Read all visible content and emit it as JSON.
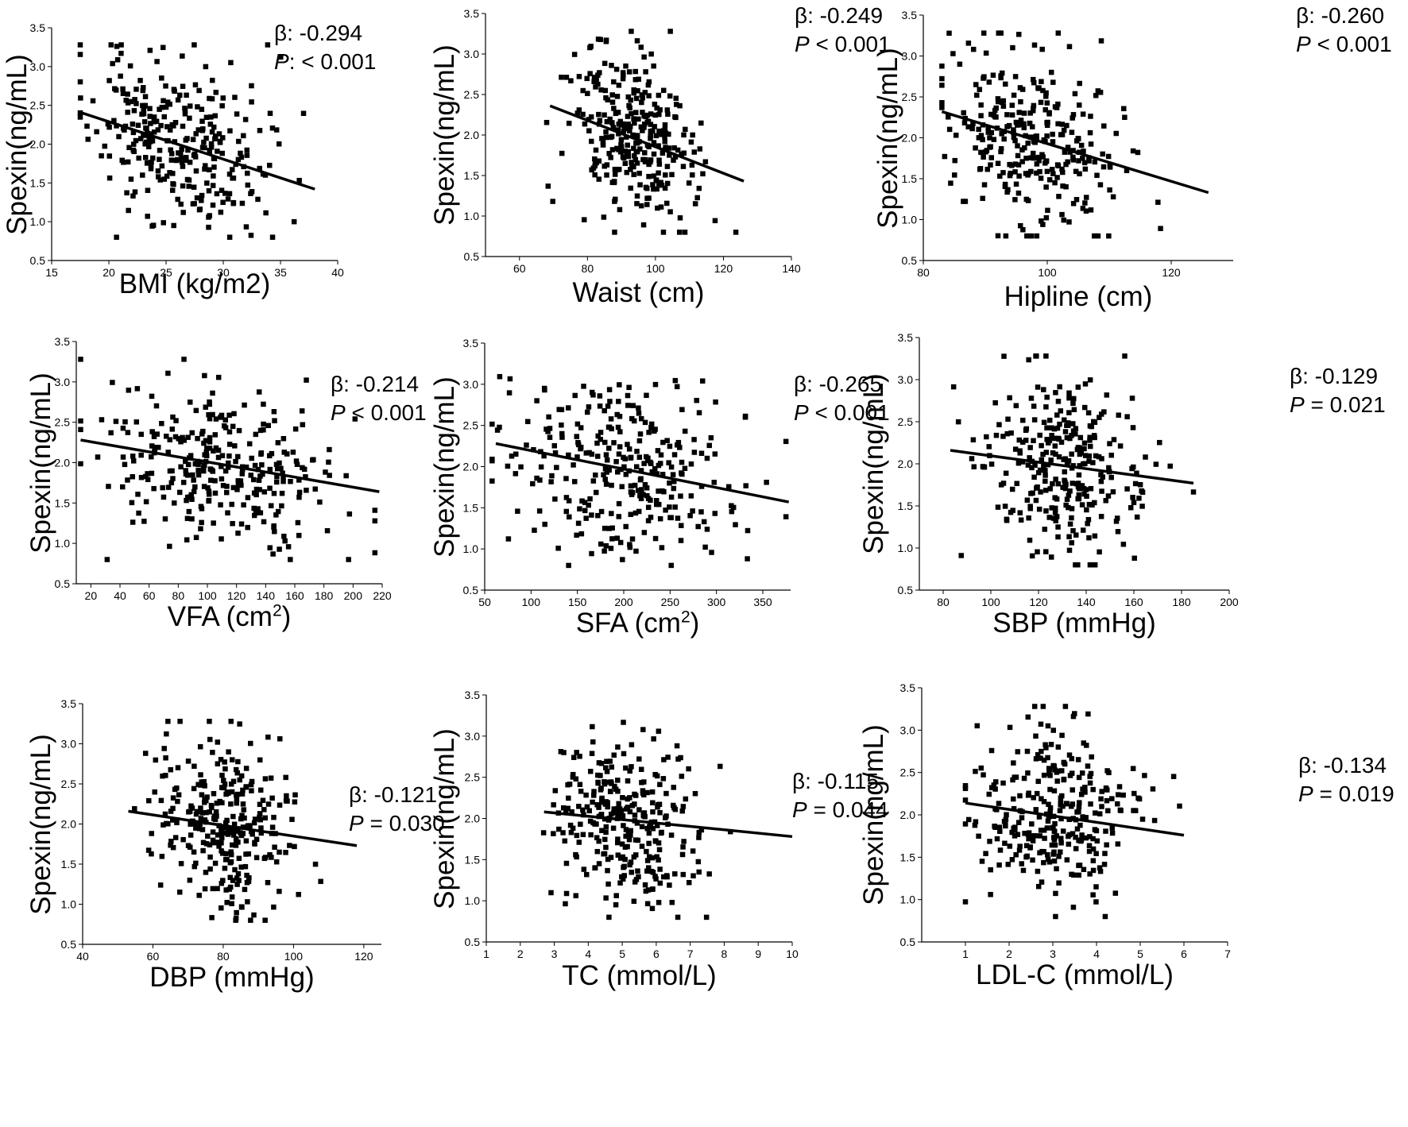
{
  "chart_data": [
    {
      "id": "bmi",
      "type": "scatter",
      "xlabel": "BMI (kg/m2)",
      "xlabel_sup": "",
      "xlabel_tail": "",
      "ylabel": "Spexin(ng/mL)",
      "beta_text": "β: -0.294",
      "p_prefix": "P",
      "p_suffix": ": < 0.001",
      "xlim": [
        15,
        40
      ],
      "ylim": [
        0.5,
        3.5
      ],
      "xticks": [
        15,
        20,
        25,
        30,
        35,
        40
      ],
      "yticks": [
        0.5,
        1.0,
        1.5,
        2.0,
        2.5,
        3.0,
        3.5
      ],
      "x_range": [
        17.5,
        38.0
      ],
      "x_center": 26,
      "x_spread": 3.8,
      "fit": {
        "x": [
          17.5,
          38.0
        ],
        "y": [
          2.41,
          1.42
        ]
      },
      "n_points": 300,
      "seed": 11
    },
    {
      "id": "waist",
      "type": "scatter",
      "xlabel": "Waist (cm)",
      "xlabel_sup": "",
      "xlabel_tail": "",
      "ylabel": "Spexin(ng/mL)",
      "beta_text": "β: -0.249",
      "p_prefix": "P",
      "p_suffix": " < 0.001",
      "xlim": [
        50,
        140
      ],
      "ylim": [
        0.5,
        3.5
      ],
      "xticks": [
        60,
        80,
        100,
        120,
        140
      ],
      "yticks": [
        0.5,
        1.0,
        1.5,
        2.0,
        2.5,
        3.0,
        3.5
      ],
      "x_range": [
        68,
        126
      ],
      "x_center": 93,
      "x_spread": 9,
      "fit": {
        "x": [
          69,
          126
        ],
        "y": [
          2.36,
          1.43
        ]
      },
      "n_points": 300,
      "seed": 23
    },
    {
      "id": "hipline",
      "type": "scatter",
      "xlabel": "Hipline (cm)",
      "xlabel_sup": "",
      "xlabel_tail": "",
      "ylabel": "Spexin(ng/mL)",
      "beta_text": "β: -0.260",
      "p_prefix": "P",
      "p_suffix": " < 0.001",
      "xlim": [
        80,
        130
      ],
      "ylim": [
        0.5,
        3.5
      ],
      "xticks": [
        80,
        100,
        120
      ],
      "yticks": [
        0.5,
        1.0,
        1.5,
        2.0,
        2.5,
        3.0,
        3.5
      ],
      "x_range": [
        83,
        126
      ],
      "x_center": 98,
      "x_spread": 7,
      "fit": {
        "x": [
          83,
          126
        ],
        "y": [
          2.32,
          1.33
        ]
      },
      "n_points": 300,
      "seed": 37
    },
    {
      "id": "vfa",
      "type": "scatter",
      "xlabel": "VFA (cm",
      "xlabel_sup": "2",
      "xlabel_tail": ")",
      "ylabel": "Spexin(ng/mL)",
      "beta_text": "β: -0.214",
      "p_prefix": "P",
      "p_suffix": " < 0.001",
      "xlim": [
        10,
        220
      ],
      "ylim": [
        0.5,
        3.5
      ],
      "xticks": [
        20,
        40,
        60,
        80,
        100,
        120,
        140,
        160,
        180,
        200,
        220
      ],
      "yticks": [
        0.5,
        1.0,
        1.5,
        2.0,
        2.5,
        3.0,
        3.5
      ],
      "x_range": [
        13,
        215
      ],
      "x_center": 108,
      "x_spread": 38,
      "fit": {
        "x": [
          13,
          218
        ],
        "y": [
          2.28,
          1.64
        ]
      },
      "n_points": 300,
      "seed": 41
    },
    {
      "id": "sfa",
      "type": "scatter",
      "xlabel": "SFA (cm",
      "xlabel_sup": "2",
      "xlabel_tail": ")",
      "ylabel": "Spexin(ng/mL)",
      "beta_text": "β: -0.265",
      "p_prefix": "P",
      "p_suffix": " < 0.001",
      "xlim": [
        50,
        380
      ],
      "ylim": [
        0.5,
        3.5
      ],
      "xticks": [
        50,
        100,
        150,
        200,
        250,
        300,
        350
      ],
      "yticks": [
        0.5,
        1.0,
        1.5,
        2.0,
        2.5,
        3.0,
        3.5
      ],
      "x_range": [
        58,
        375
      ],
      "x_center": 195,
      "x_spread": 60,
      "fit": {
        "x": [
          62,
          378
        ],
        "y": [
          2.28,
          1.57
        ]
      },
      "n_points": 300,
      "seed": 53
    },
    {
      "id": "sbp",
      "type": "scatter",
      "xlabel": "SBP (mmHg)",
      "xlabel_sup": "",
      "xlabel_tail": "",
      "ylabel": "Spexin(ng/mL)",
      "beta_text": "β: -0.129",
      "p_prefix": "P",
      "p_suffix": " = 0.021",
      "xlim": [
        70,
        200
      ],
      "ylim": [
        0.5,
        3.5
      ],
      "xticks": [
        80,
        100,
        120,
        140,
        160,
        180,
        200
      ],
      "yticks": [
        0.5,
        1.0,
        1.5,
        2.0,
        2.5,
        3.0,
        3.5
      ],
      "x_range": [
        83,
        185
      ],
      "x_center": 130,
      "x_spread": 17,
      "fit": {
        "x": [
          83,
          185
        ],
        "y": [
          2.16,
          1.77
        ]
      },
      "n_points": 300,
      "seed": 67
    },
    {
      "id": "dbp",
      "type": "scatter",
      "xlabel": "DBP (mmHg)",
      "xlabel_sup": "",
      "xlabel_tail": "",
      "ylabel": "Spexin(ng/mL)",
      "beta_text": "β: -0.121",
      "p_prefix": "P",
      "p_suffix": " = 0.030",
      "xlim": [
        40,
        125
      ],
      "ylim": [
        0.5,
        3.5
      ],
      "xticks": [
        40,
        60,
        80,
        100,
        120
      ],
      "yticks": [
        0.5,
        1.0,
        1.5,
        2.0,
        2.5,
        3.0,
        3.5
      ],
      "x_range": [
        53,
        118
      ],
      "x_center": 80,
      "x_spread": 10,
      "fit": {
        "x": [
          53,
          118
        ],
        "y": [
          2.16,
          1.73
        ]
      },
      "n_points": 300,
      "seed": 79
    },
    {
      "id": "tc",
      "type": "scatter",
      "xlabel": "TC (mmol/L)",
      "xlabel_sup": "",
      "xlabel_tail": "",
      "ylabel": "Spexin(ng/mL)",
      "beta_text": "β: -0.115",
      "p_prefix": "P",
      "p_suffix": " = 0.044",
      "xlim": [
        1,
        10
      ],
      "ylim": [
        0.5,
        3.5
      ],
      "xticks": [
        1,
        2,
        3,
        4,
        5,
        6,
        7,
        8,
        9,
        10
      ],
      "yticks": [
        0.5,
        1.0,
        1.5,
        2.0,
        2.5,
        3.0,
        3.5
      ],
      "x_range": [
        2.6,
        9.5
      ],
      "x_center": 5.0,
      "x_spread": 1.1,
      "fit": {
        "x": [
          2.7,
          10.0
        ],
        "y": [
          2.08,
          1.78
        ]
      },
      "n_points": 300,
      "seed": 83
    },
    {
      "id": "ldlc",
      "type": "scatter",
      "xlabel": "LDL-C (mmol/L)",
      "xlabel_sup": "",
      "xlabel_tail": "",
      "ylabel": "Spexin(ng/mL)",
      "beta_text": "β: -0.134",
      "p_prefix": "P",
      "p_suffix": " = 0.019",
      "xlim": [
        0,
        7
      ],
      "ylim": [
        0.5,
        3.5
      ],
      "xticks": [
        1,
        2,
        3,
        4,
        5,
        6,
        7
      ],
      "yticks": [
        0.5,
        1.0,
        1.5,
        2.0,
        2.5,
        3.0,
        3.5
      ],
      "x_range": [
        1.0,
        5.9
      ],
      "x_center": 3.0,
      "x_spread": 0.95,
      "fit": {
        "x": [
          1.0,
          6.0
        ],
        "y": [
          2.14,
          1.76
        ]
      },
      "n_points": 300,
      "seed": 97
    }
  ]
}
